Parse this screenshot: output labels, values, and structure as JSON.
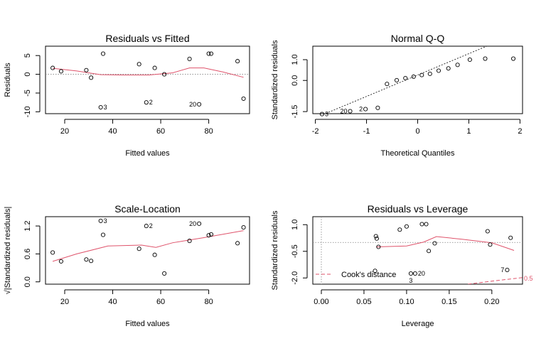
{
  "chart_data": [
    {
      "type": "scatter",
      "title": "Residuals vs Fitted",
      "xlabel": "Fitted values",
      "ylabel": "Residuals",
      "xlim": [
        12,
        97
      ],
      "ylim": [
        -10.5,
        7.5
      ],
      "xticks": [
        {
          "v": 20,
          "label": "20"
        },
        {
          "v": 40,
          "label": "40"
        },
        {
          "v": 60,
          "label": "60"
        },
        {
          "v": 80,
          "label": "80"
        }
      ],
      "yticks": [
        {
          "v": -10,
          "label": "-10"
        },
        {
          "v": -5,
          "label": "-5"
        },
        {
          "v": 0,
          "label": "0"
        },
        {
          "v": 5,
          "label": "5"
        }
      ],
      "points": [
        [
          15,
          1.7
        ],
        [
          18.5,
          0.8
        ],
        [
          29,
          1.1
        ],
        [
          31,
          -0.9
        ],
        [
          36,
          5.5
        ],
        [
          35,
          -8.8
        ],
        [
          51,
          2.7
        ],
        [
          54,
          -7.5
        ],
        [
          57.5,
          1.7
        ],
        [
          61.5,
          0
        ],
        [
          72,
          4.1
        ],
        [
          76,
          -8
        ],
        [
          80,
          5.5
        ],
        [
          81,
          5.5
        ],
        [
          92,
          3.5
        ],
        [
          94.5,
          -6.5
        ]
      ],
      "smooth": [
        [
          15,
          1.6
        ],
        [
          25,
          0.9
        ],
        [
          35,
          -0.1
        ],
        [
          45,
          -0.2
        ],
        [
          55,
          -0.2
        ],
        [
          65,
          0.4
        ],
        [
          72,
          1.7
        ],
        [
          78,
          1.7
        ],
        [
          86,
          0.6
        ],
        [
          94.5,
          -0.8
        ]
      ],
      "hline": 0,
      "labels": [
        {
          "x": 35,
          "y": -8.8,
          "text": "3",
          "pos": "right"
        },
        {
          "x": 54,
          "y": -7.5,
          "text": "2",
          "pos": "right"
        },
        {
          "x": 76,
          "y": -8,
          "text": "20",
          "pos": "left"
        }
      ]
    },
    {
      "type": "scatter",
      "title": "Normal Q-Q",
      "xlabel": "Theoretical Quantiles",
      "ylabel": "Standardized residuals",
      "xlim": [
        -2.05,
        2.05
      ],
      "ylim": [
        -1.6,
        1.65
      ],
      "xticks": [
        {
          "v": -2,
          "label": "-2"
        },
        {
          "v": -1,
          "label": "-1"
        },
        {
          "v": 0,
          "label": "0"
        },
        {
          "v": 1,
          "label": "1"
        },
        {
          "v": 2,
          "label": "2"
        }
      ],
      "yticks": [
        {
          "v": -1.5,
          "label": "-1.5"
        },
        {
          "v": 0,
          "label": "0.0"
        },
        {
          "v": 1,
          "label": "1.0"
        }
      ],
      "points": [
        [
          -1.87,
          -1.62
        ],
        [
          -1.32,
          -1.48
        ],
        [
          -1.02,
          -1.38
        ],
        [
          -0.78,
          -1.32
        ],
        [
          -0.6,
          -0.17
        ],
        [
          -0.41,
          0.01
        ],
        [
          -0.24,
          0.11
        ],
        [
          -0.08,
          0.18
        ],
        [
          0.08,
          0.26
        ],
        [
          0.24,
          0.32
        ],
        [
          0.41,
          0.47
        ],
        [
          0.6,
          0.58
        ],
        [
          0.78,
          0.75
        ],
        [
          1.02,
          1.0
        ],
        [
          1.32,
          1.05
        ],
        [
          1.87,
          1.05
        ]
      ],
      "refline": [
        [
          -2.05,
          -1.85
        ],
        [
          1.35,
          1.65
        ]
      ],
      "labels": [
        {
          "x": -1.87,
          "y": -1.62,
          "text": "3",
          "pos": "right"
        },
        {
          "x": -1.32,
          "y": -1.48,
          "text": "20",
          "pos": "left"
        },
        {
          "x": -1.02,
          "y": -1.38,
          "text": "2",
          "pos": "left"
        }
      ]
    },
    {
      "type": "scatter",
      "title": "Scale-Location",
      "xlabel": "Fitted values",
      "ylabel": "√|Standardized residuals|",
      "xlim": [
        12,
        97
      ],
      "ylim": [
        -0.05,
        1.4
      ],
      "xticks": [
        {
          "v": 20,
          "label": "20"
        },
        {
          "v": 40,
          "label": "40"
        },
        {
          "v": 60,
          "label": "60"
        },
        {
          "v": 80,
          "label": "80"
        }
      ],
      "yticks": [
        {
          "v": 0,
          "label": "0.0"
        },
        {
          "v": 0.6,
          "label": "0.6"
        },
        {
          "v": 1.2,
          "label": "1.2"
        }
      ],
      "points": [
        [
          15,
          0.63
        ],
        [
          18.5,
          0.44
        ],
        [
          29,
          0.48
        ],
        [
          31,
          0.45
        ],
        [
          36,
          1.01
        ],
        [
          35,
          1.31
        ],
        [
          51,
          0.71
        ],
        [
          54,
          1.2
        ],
        [
          57.5,
          0.58
        ],
        [
          61.5,
          0.18
        ],
        [
          72,
          0.88
        ],
        [
          76,
          1.25
        ],
        [
          80,
          1.0
        ],
        [
          81,
          1.02
        ],
        [
          92,
          0.83
        ],
        [
          94.5,
          1.17
        ]
      ],
      "smooth": [
        [
          15,
          0.44
        ],
        [
          25,
          0.6
        ],
        [
          38,
          0.77
        ],
        [
          52,
          0.79
        ],
        [
          58,
          0.74
        ],
        [
          65,
          0.84
        ],
        [
          78,
          0.95
        ],
        [
          94.5,
          1.1
        ]
      ],
      "labels": [
        {
          "x": 35,
          "y": 1.31,
          "text": "3",
          "pos": "right"
        },
        {
          "x": 54,
          "y": 1.2,
          "text": "2",
          "pos": "right"
        },
        {
          "x": 76,
          "y": 1.25,
          "text": "20",
          "pos": "left"
        }
      ]
    },
    {
      "type": "scatter",
      "title": "Residuals vs Leverage",
      "xlabel": "Leverage",
      "ylabel": "Standardized residuals",
      "xlim": [
        -0.01,
        0.236
      ],
      "ylim": [
        -2.35,
        1.45
      ],
      "xticks": [
        {
          "v": 0,
          "label": "0.00"
        },
        {
          "v": 0.05,
          "label": "0.05"
        },
        {
          "v": 0.1,
          "label": "0.10"
        },
        {
          "v": 0.15,
          "label": "0.15"
        },
        {
          "v": 0.2,
          "label": "0.20"
        }
      ],
      "yticks": [
        {
          "v": -2,
          "label": "-2.0"
        },
        {
          "v": -0.5,
          "label": "-0.5"
        },
        {
          "v": 1,
          "label": "1.0"
        }
      ],
      "points": [
        [
          0.064,
          0.35
        ],
        [
          0.065,
          0.22
        ],
        [
          0.067,
          -0.25
        ],
        [
          0.063,
          -1.6
        ],
        [
          0.092,
          0.72
        ],
        [
          0.1,
          0.9
        ],
        [
          0.105,
          -1.75
        ],
        [
          0.11,
          -1.75
        ],
        [
          0.118,
          1.03
        ],
        [
          0.123,
          1.03
        ],
        [
          0.126,
          -0.48
        ],
        [
          0.133,
          -0.05
        ],
        [
          0.195,
          0.63
        ],
        [
          0.198,
          -0.12
        ],
        [
          0.222,
          0.26
        ],
        [
          0.218,
          -1.55
        ]
      ],
      "smooth": [
        [
          0.065,
          -0.25
        ],
        [
          0.1,
          -0.2
        ],
        [
          0.12,
          0.02
        ],
        [
          0.135,
          0.33
        ],
        [
          0.165,
          0.18
        ],
        [
          0.2,
          -0.02
        ],
        [
          0.226,
          -0.45
        ]
      ],
      "hline": 0,
      "cooks": [
        [
          0.172,
          -2.35
        ],
        [
          0.2,
          -2.18
        ],
        [
          0.236,
          -1.98
        ]
      ],
      "cooks_label": "0.5",
      "legend_label": "Cook's distance",
      "labels": [
        {
          "x": 0.105,
          "y": -1.75,
          "text": "3",
          "pos": "below"
        },
        {
          "x": 0.11,
          "y": -1.75,
          "text": "20",
          "pos": "right"
        },
        {
          "x": 0.218,
          "y": -1.55,
          "text": "7",
          "pos": "left"
        }
      ]
    }
  ],
  "colors": {
    "smooth": "#DF536B",
    "ref": "#808080",
    "axis": "#000000"
  }
}
